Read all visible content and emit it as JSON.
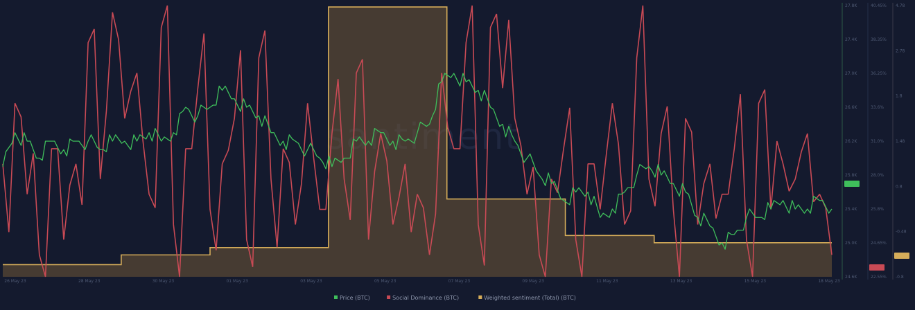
{
  "watermark": "santiment",
  "colors": {
    "background": "#141a2e",
    "price": "#3fbf5b",
    "social_dominance": "#c94a55",
    "sentiment_line": "#d6ad5a",
    "sentiment_fill": "#6f5836",
    "axis_line": "#243049"
  },
  "legend": [
    {
      "name": "Price (BTC)",
      "color": "#3fbf5b"
    },
    {
      "name": "Social Dominance (BTC)",
      "color": "#c94a55"
    },
    {
      "name": "Weighted sentiment (Total) (BTC)",
      "color": "#d6ad5a"
    }
  ],
  "badges": {
    "price": {
      "text": "",
      "color": "#3fbf5b"
    },
    "dominance": {
      "text": "",
      "color": "#c94a55"
    },
    "sentiment": {
      "text": "",
      "color": "#d6ad5a"
    }
  },
  "chart_data": {
    "type": "line",
    "title": "",
    "x_ticks": [
      "26 May 23",
      "28 May 23",
      "30 May 23",
      "01 May 23",
      "03 May 23",
      "05 May 23",
      "07 May 23",
      "09 May 23",
      "11 May 23",
      "13 May 23",
      "15 May 23",
      "18 May 23"
    ],
    "y_axes": {
      "price": {
        "ticks": [
          "27.8K",
          "27.4K",
          "27.0K",
          "26.6K",
          "26.2K",
          "25.8K",
          "25.4K",
          "25.0K",
          "24.6K"
        ],
        "range": [
          24.6,
          27.8
        ]
      },
      "social_dominance": {
        "ticks": [
          "40.45%",
          "38.35%",
          "36.25%",
          "33.6%",
          "31.0%",
          "28.0%",
          "25.8%",
          "24.65%",
          "22.55%"
        ],
        "range": [
          22.55,
          40.45
        ]
      },
      "weighted_sentiment": {
        "ticks": [
          "4.78",
          "2.78",
          "1.8",
          "1.48",
          "0.8",
          "-0.48",
          "-0.8"
        ],
        "range": [
          -0.8,
          4.78
        ]
      }
    },
    "series": [
      {
        "name": "Price (BTC)",
        "axis": "price",
        "values": [
          25.9,
          26.3,
          26.2,
          26.0,
          26.2,
          26.1,
          26.2,
          26.2,
          26.1,
          26.2,
          26.2,
          26.2,
          26.3,
          26.2,
          26.3,
          26.6,
          26.5,
          26.6,
          26.8,
          26.7,
          26.6,
          26.5,
          26.3,
          26.2,
          26.2,
          26.1,
          26.0,
          25.9,
          26.0,
          26.2,
          26.2,
          26.3,
          26.2,
          26.2,
          26.3,
          26.4,
          26.9,
          27.0,
          26.9,
          26.8,
          26.6,
          26.4,
          26.2,
          26.0,
          25.8,
          25.7,
          25.5,
          25.6,
          25.6,
          25.3,
          25.4,
          25.6,
          25.8,
          25.9,
          25.8,
          25.7,
          25.6,
          25.3,
          25.2,
          25.0,
          25.1,
          25.3,
          25.3,
          25.4,
          25.5,
          25.4,
          25.4,
          25.5,
          25.4
        ]
      },
      {
        "name": "Social Dominance (BTC)",
        "axis": "social_dominance",
        "values": [
          30,
          34,
          28,
          24,
          31,
          25,
          30,
          38,
          29,
          40,
          33,
          36,
          28,
          39,
          26,
          31,
          35,
          27,
          30,
          33,
          25,
          37,
          29,
          31,
          26,
          34,
          27,
          32,
          29,
          36,
          25,
          32,
          26,
          30,
          28,
          24,
          36,
          31,
          38,
          26,
          39,
          35,
          33,
          28,
          24,
          29,
          31,
          25,
          30,
          27,
          34,
          26,
          37,
          29,
          32,
          27,
          33,
          26,
          30,
          28,
          31,
          25,
          34,
          27,
          30,
          29,
          32,
          28,
          24
        ]
      },
      {
        "name": "Weighted sentiment (Total) (BTC)",
        "axis": "weighted_sentiment",
        "values": [
          -0.55,
          -0.55,
          -0.55,
          -0.55,
          -0.35,
          -0.35,
          -0.35,
          -0.2,
          -0.2,
          -0.2,
          -0.2,
          4.75,
          4.75,
          4.75,
          4.75,
          0.8,
          0.8,
          0.8,
          0.8,
          0.05,
          0.05,
          0.05,
          -0.1,
          -0.1,
          -0.1,
          -0.1,
          -0.1,
          -0.1
        ]
      }
    ],
    "grid": false,
    "legend_position": "bottom-center"
  }
}
